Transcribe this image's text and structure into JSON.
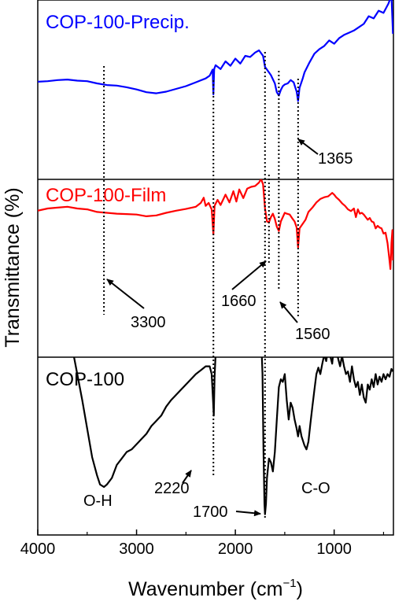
{
  "chart_data": {
    "type": "line",
    "xlabel": "Wavenumber (cm",
    "xlabel_sup": "−1",
    "xlabel_close": ")",
    "ylabel": "Transmittance (%)",
    "xlim": [
      4000,
      400
    ],
    "x_ticks": [
      4000,
      3000,
      2000,
      1000
    ],
    "x_tick_labels": [
      "4000",
      "3000",
      "2000",
      "1000"
    ],
    "grid": false,
    "series": [
      {
        "name": "COP-100-Precip.",
        "color": "#0000ff",
        "points": [
          [
            4000,
            0.33
          ],
          [
            3900,
            0.34
          ],
          [
            3800,
            0.36
          ],
          [
            3700,
            0.37
          ],
          [
            3600,
            0.35
          ],
          [
            3500,
            0.34
          ],
          [
            3400,
            0.3
          ],
          [
            3300,
            0.27
          ],
          [
            3200,
            0.26
          ],
          [
            3100,
            0.23
          ],
          [
            3000,
            0.19
          ],
          [
            2900,
            0.14
          ],
          [
            2800,
            0.12
          ],
          [
            2700,
            0.15
          ],
          [
            2600,
            0.2
          ],
          [
            2500,
            0.25
          ],
          [
            2400,
            0.32
          ],
          [
            2300,
            0.39
          ],
          [
            2260,
            0.44
          ],
          [
            2230,
            0.55
          ],
          [
            2222,
            0.1
          ],
          [
            2214,
            0.56
          ],
          [
            2200,
            0.63
          ],
          [
            2150,
            0.56
          ],
          [
            2100,
            0.7
          ],
          [
            2050,
            0.62
          ],
          [
            2000,
            0.75
          ],
          [
            1950,
            0.66
          ],
          [
            1900,
            0.8
          ],
          [
            1850,
            0.78
          ],
          [
            1800,
            0.86
          ],
          [
            1760,
            0.9
          ],
          [
            1720,
            0.8
          ],
          [
            1700,
            0.6
          ],
          [
            1680,
            0.55
          ],
          [
            1640,
            0.45
          ],
          [
            1600,
            0.3
          ],
          [
            1580,
            0.14
          ],
          [
            1560,
            0.08
          ],
          [
            1540,
            0.18
          ],
          [
            1520,
            0.25
          ],
          [
            1500,
            0.28
          ],
          [
            1470,
            0.3
          ],
          [
            1440,
            0.36
          ],
          [
            1410,
            0.32
          ],
          [
            1380,
            0.15
          ],
          [
            1365,
            -0.02
          ],
          [
            1350,
            0.22
          ],
          [
            1320,
            0.38
          ],
          [
            1300,
            0.5
          ],
          [
            1250,
            0.68
          ],
          [
            1200,
            0.84
          ],
          [
            1150,
            0.92
          ],
          [
            1100,
            0.98
          ],
          [
            1050,
            1.08
          ],
          [
            1000,
            1.02
          ],
          [
            950,
            1.12
          ],
          [
            900,
            1.18
          ],
          [
            850,
            1.22
          ],
          [
            800,
            1.26
          ],
          [
            750,
            1.32
          ],
          [
            700,
            1.38
          ],
          [
            650,
            1.52
          ],
          [
            600,
            1.48
          ],
          [
            550,
            1.62
          ],
          [
            500,
            1.58
          ],
          [
            450,
            1.75
          ],
          [
            420,
            1.9
          ],
          [
            405,
            1.2
          ]
        ]
      },
      {
        "name": "COP-100-Film",
        "color": "#ff0000",
        "points": [
          [
            4000,
            0.55
          ],
          [
            3900,
            0.6
          ],
          [
            3800,
            0.62
          ],
          [
            3700,
            0.64
          ],
          [
            3600,
            0.6
          ],
          [
            3500,
            0.58
          ],
          [
            3400,
            0.52
          ],
          [
            3300,
            0.5
          ],
          [
            3200,
            0.48
          ],
          [
            3100,
            0.47
          ],
          [
            3000,
            0.46
          ],
          [
            2900,
            0.42
          ],
          [
            2800,
            0.44
          ],
          [
            2700,
            0.5
          ],
          [
            2600,
            0.55
          ],
          [
            2500,
            0.59
          ],
          [
            2400,
            0.64
          ],
          [
            2350,
            0.73
          ],
          [
            2320,
            0.85
          ],
          [
            2300,
            0.66
          ],
          [
            2270,
            0.73
          ],
          [
            2240,
            0.58
          ],
          [
            2222,
            0.0
          ],
          [
            2210,
            0.66
          ],
          [
            2180,
            0.8
          ],
          [
            2150,
            0.68
          ],
          [
            2100,
            0.92
          ],
          [
            2060,
            0.74
          ],
          [
            2020,
            1.0
          ],
          [
            1990,
            0.76
          ],
          [
            1960,
            1.04
          ],
          [
            1920,
            0.84
          ],
          [
            1880,
            1.06
          ],
          [
            1840,
            1.1
          ],
          [
            1800,
            1.12
          ],
          [
            1760,
            1.2
          ],
          [
            1740,
            1.28
          ],
          [
            1720,
            1.16
          ],
          [
            1700,
            0.6
          ],
          [
            1680,
            0.3
          ],
          [
            1660,
            0.28
          ],
          [
            1640,
            0.4
          ],
          [
            1620,
            0.48
          ],
          [
            1600,
            0.36
          ],
          [
            1580,
            0.18
          ],
          [
            1560,
            0.08
          ],
          [
            1540,
            0.3
          ],
          [
            1520,
            0.4
          ],
          [
            1500,
            0.5
          ],
          [
            1480,
            0.48
          ],
          [
            1450,
            0.46
          ],
          [
            1420,
            0.36
          ],
          [
            1400,
            0.3
          ],
          [
            1380,
            0.16
          ],
          [
            1365,
            -0.3
          ],
          [
            1350,
            0.14
          ],
          [
            1320,
            0.24
          ],
          [
            1290,
            0.34
          ],
          [
            1260,
            0.52
          ],
          [
            1220,
            0.62
          ],
          [
            1180,
            0.74
          ],
          [
            1140,
            0.82
          ],
          [
            1100,
            0.86
          ],
          [
            1060,
            0.88
          ],
          [
            1020,
            0.96
          ],
          [
            1000,
            0.92
          ],
          [
            980,
            0.86
          ],
          [
            950,
            0.8
          ],
          [
            920,
            0.72
          ],
          [
            890,
            0.66
          ],
          [
            860,
            0.58
          ],
          [
            830,
            0.54
          ],
          [
            800,
            0.6
          ],
          [
            780,
            0.4
          ],
          [
            760,
            0.58
          ],
          [
            740,
            0.48
          ],
          [
            720,
            0.5
          ],
          [
            700,
            0.46
          ],
          [
            680,
            0.4
          ],
          [
            660,
            0.34
          ],
          [
            640,
            0.38
          ],
          [
            620,
            0.3
          ],
          [
            600,
            0.28
          ],
          [
            580,
            0.14
          ],
          [
            560,
            0.2
          ],
          [
            540,
            0.16
          ],
          [
            520,
            0.14
          ],
          [
            500,
            0.02
          ],
          [
            480,
            0.04
          ],
          [
            460,
            -0.2
          ],
          [
            445,
            -0.5
          ],
          [
            430,
            -0.8
          ],
          [
            420,
            -0.2
          ],
          [
            410,
            0.1
          ],
          [
            405,
            -0.6
          ]
        ]
      },
      {
        "name": "COP-100",
        "color": "#000000",
        "points": [
          [
            4000,
            0.6
          ],
          [
            3900,
            0.62
          ],
          [
            3800,
            0.62
          ],
          [
            3750,
            0.64
          ],
          [
            3700,
            0.62
          ],
          [
            3650,
            0.5
          ],
          [
            3600,
            0.3
          ],
          [
            3550,
            0.1
          ],
          [
            3500,
            -0.12
          ],
          [
            3450,
            -0.34
          ],
          [
            3400,
            -0.48
          ],
          [
            3370,
            -0.55
          ],
          [
            3330,
            -0.57
          ],
          [
            3300,
            -0.55
          ],
          [
            3250,
            -0.5
          ],
          [
            3200,
            -0.4
          ],
          [
            3150,
            -0.35
          ],
          [
            3100,
            -0.3
          ],
          [
            3050,
            -0.28
          ],
          [
            3000,
            -0.24
          ],
          [
            2950,
            -0.2
          ],
          [
            2900,
            -0.16
          ],
          [
            2850,
            -0.1
          ],
          [
            2800,
            -0.06
          ],
          [
            2750,
            -0.02
          ],
          [
            2700,
            0.05
          ],
          [
            2650,
            0.1
          ],
          [
            2600,
            0.14
          ],
          [
            2550,
            0.18
          ],
          [
            2500,
            0.22
          ],
          [
            2450,
            0.26
          ],
          [
            2400,
            0.3
          ],
          [
            2350,
            0.33
          ],
          [
            2300,
            0.36
          ],
          [
            2260,
            0.36
          ],
          [
            2240,
            0.3
          ],
          [
            2225,
            0.08
          ],
          [
            2218,
            -0.02
          ],
          [
            2210,
            0.28
          ],
          [
            2200,
            0.45
          ],
          [
            2150,
            0.52
          ],
          [
            2100,
            0.58
          ],
          [
            2050,
            0.62
          ],
          [
            2000,
            0.64
          ],
          [
            1950,
            0.64
          ],
          [
            1900,
            0.66
          ],
          [
            1850,
            0.7
          ],
          [
            1800,
            0.68
          ],
          [
            1760,
            0.66
          ],
          [
            1740,
            0.6
          ],
          [
            1725,
            0.3
          ],
          [
            1715,
            -0.3
          ],
          [
            1705,
            -0.7
          ],
          [
            1700,
            -0.78
          ],
          [
            1690,
            -0.7
          ],
          [
            1680,
            -0.5
          ],
          [
            1660,
            -0.35
          ],
          [
            1640,
            -0.38
          ],
          [
            1620,
            -0.45
          ],
          [
            1600,
            -0.3
          ],
          [
            1580,
            -0.05
          ],
          [
            1560,
            0.2
          ],
          [
            1540,
            0.26
          ],
          [
            1520,
            0.24
          ],
          [
            1500,
            0.3
          ],
          [
            1480,
            0.1
          ],
          [
            1460,
            -0.05
          ],
          [
            1440,
            0.08
          ],
          [
            1420,
            0.04
          ],
          [
            1400,
            -0.05
          ],
          [
            1380,
            -0.12
          ],
          [
            1365,
            -0.18
          ],
          [
            1350,
            -0.1
          ],
          [
            1330,
            -0.18
          ],
          [
            1300,
            -0.25
          ],
          [
            1280,
            -0.28
          ],
          [
            1260,
            -0.22
          ],
          [
            1240,
            -0.08
          ],
          [
            1220,
            0.05
          ],
          [
            1200,
            0.18
          ],
          [
            1180,
            0.3
          ],
          [
            1160,
            0.35
          ],
          [
            1140,
            0.3
          ],
          [
            1120,
            0.38
          ],
          [
            1100,
            0.45
          ],
          [
            1080,
            0.4
          ],
          [
            1060,
            0.5
          ],
          [
            1040,
            0.44
          ],
          [
            1020,
            0.38
          ],
          [
            1000,
            0.54
          ],
          [
            980,
            0.5
          ],
          [
            960,
            0.42
          ],
          [
            940,
            0.36
          ],
          [
            920,
            0.44
          ],
          [
            900,
            0.36
          ],
          [
            880,
            0.3
          ],
          [
            860,
            0.32
          ],
          [
            840,
            0.24
          ],
          [
            820,
            0.36
          ],
          [
            800,
            0.26
          ],
          [
            780,
            0.2
          ],
          [
            760,
            0.24
          ],
          [
            740,
            0.14
          ],
          [
            720,
            0.22
          ],
          [
            700,
            0.12
          ],
          [
            680,
            0.08
          ],
          [
            660,
            0.22
          ],
          [
            640,
            0.18
          ],
          [
            620,
            0.26
          ],
          [
            600,
            0.2
          ],
          [
            580,
            0.3
          ],
          [
            560,
            0.22
          ],
          [
            540,
            0.28
          ],
          [
            520,
            0.24
          ],
          [
            500,
            0.3
          ],
          [
            480,
            0.26
          ],
          [
            460,
            0.3
          ],
          [
            440,
            0.28
          ],
          [
            420,
            0.34
          ],
          [
            405,
            0.32
          ]
        ]
      }
    ],
    "guides": [
      3330,
      2222,
      1700,
      1660,
      1560,
      1365
    ],
    "annotations": [
      {
        "text": "1365",
        "wavenumber": 1365
      },
      {
        "text": "3300",
        "wavenumber": 3300
      },
      {
        "text": "1660",
        "wavenumber": 1660
      },
      {
        "text": "1560",
        "wavenumber": 1560
      },
      {
        "text": "2220",
        "wavenumber": 2220
      },
      {
        "text": "1700",
        "wavenumber": 1700
      },
      {
        "text": "O-H",
        "wavenumber": 3350
      },
      {
        "text": "C-O",
        "wavenumber": 1270
      }
    ]
  }
}
